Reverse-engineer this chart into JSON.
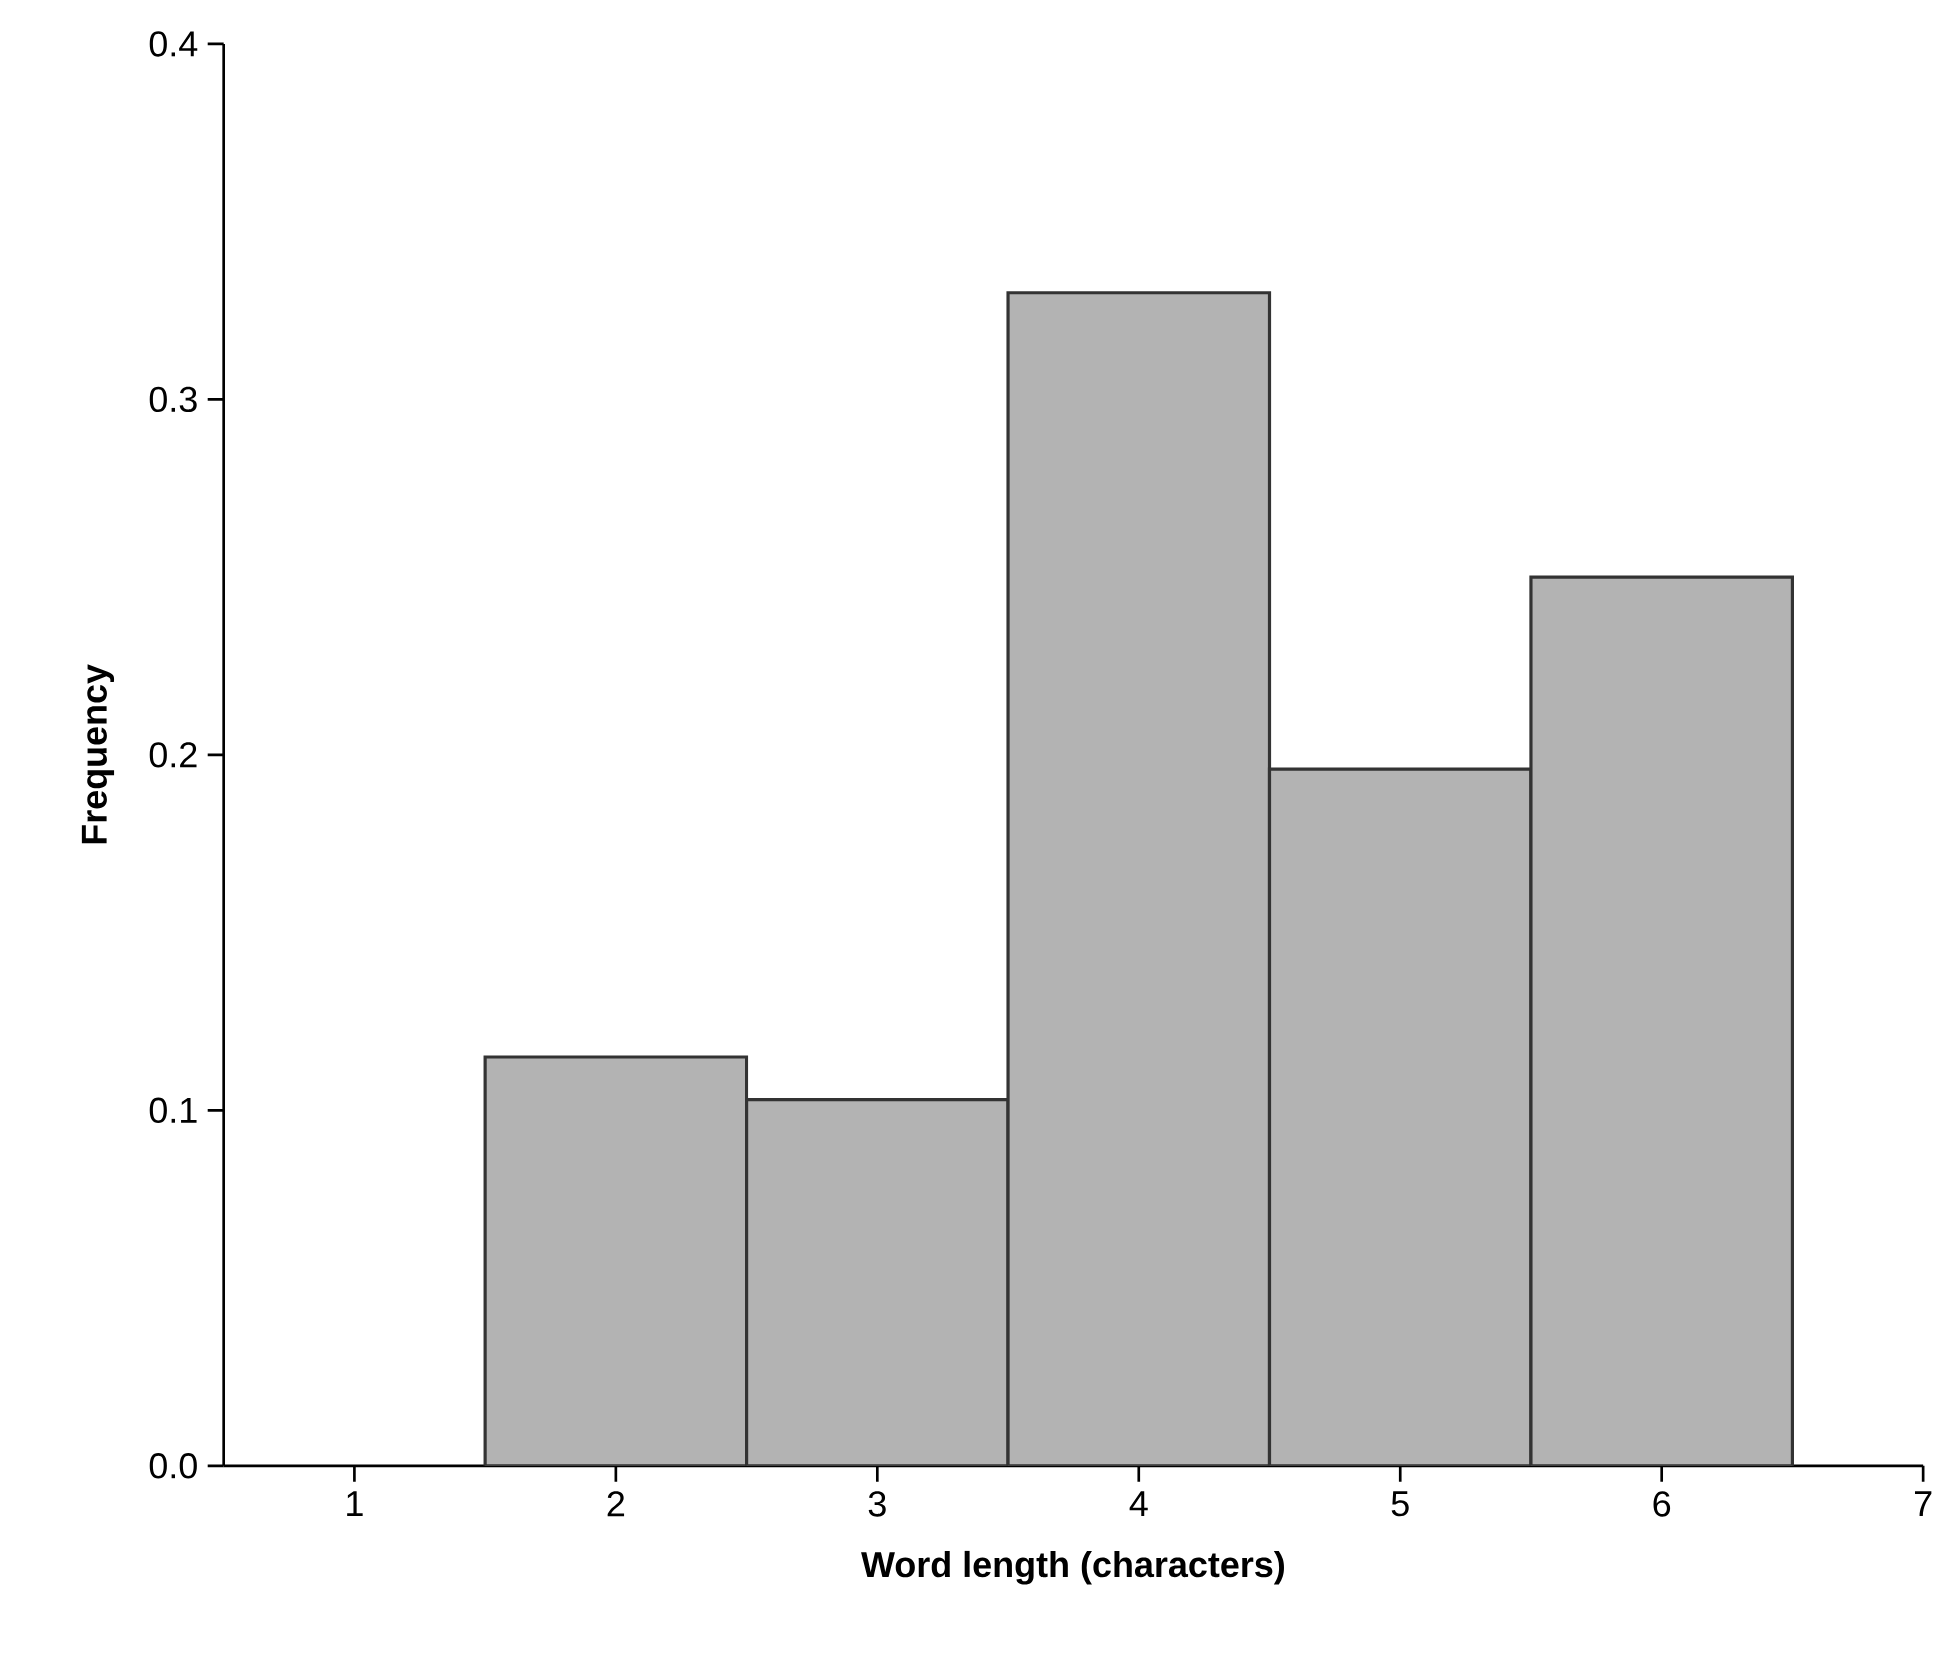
{
  "chart_data": {
    "type": "histogram",
    "xlabel": "Word length (characters)",
    "ylabel": "Frequency",
    "bins": [
      1.5,
      2.5,
      3.5,
      4.5,
      5.5,
      6.5
    ],
    "values": [
      0.115,
      0.103,
      0.33,
      0.196,
      0.25
    ],
    "color": "#b3b3b3",
    "xlim": [
      0.5,
      7
    ],
    "ylim": [
      0,
      0.4
    ],
    "xticks": [
      1,
      2,
      3,
      4,
      5,
      6,
      7
    ],
    "yticks": [
      {
        "value": 0,
        "label": "0.0"
      },
      0.1,
      0.2,
      0.3,
      0.4
    ],
    "grid": false
  }
}
